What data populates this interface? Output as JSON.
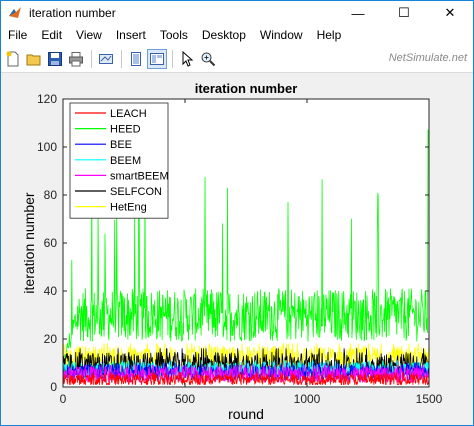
{
  "window": {
    "title": "iteration number",
    "minimize_glyph": "—",
    "maximize_glyph": "☐",
    "close_glyph": "✕"
  },
  "menu": [
    "File",
    "Edit",
    "View",
    "Insert",
    "Tools",
    "Desktop",
    "Window",
    "Help"
  ],
  "toolbar": {
    "icons": [
      "new-figure-icon",
      "open-icon",
      "save-icon",
      "print-icon",
      "link-plot-icon",
      "hide-plot-tools-icon",
      "show-plot-tools-icon",
      "edit-plot-icon",
      "zoom-in-icon"
    ],
    "watermark": "NetSimulate.net"
  },
  "colors": {
    "LEACH": "#ff0000",
    "HEED": "#00ff00",
    "BEE": "#0000ff",
    "BEEM": "#00ffff",
    "smartBEEM": "#ff00ff",
    "SELFCON": "#000000",
    "HetEng": "#ffff00"
  },
  "chart_data": {
    "type": "line",
    "title": "iteration number",
    "xlabel": "round",
    "ylabel": "iteration number",
    "xlim": [
      0,
      1500
    ],
    "ylim": [
      0,
      120
    ],
    "xticks": [
      0,
      500,
      1000,
      1500
    ],
    "yticks": [
      0,
      20,
      40,
      60,
      80,
      100,
      120
    ],
    "grid": false,
    "legend_position": "top-left",
    "series": [
      {
        "name": "LEACH",
        "color": "#ff0000",
        "approx_mean": 3,
        "approx_range": [
          1,
          6
        ]
      },
      {
        "name": "HEED",
        "color": "#00ff00",
        "approx_mean": 30,
        "approx_range": [
          10,
          107
        ]
      },
      {
        "name": "BEE",
        "color": "#0000ff",
        "approx_mean": 6,
        "approx_range": [
          3,
          10
        ]
      },
      {
        "name": "BEEM",
        "color": "#00ffff",
        "approx_mean": 7,
        "approx_range": [
          4,
          11
        ]
      },
      {
        "name": "smartBEEM",
        "color": "#ff00ff",
        "approx_mean": 5,
        "approx_range": [
          2,
          9
        ]
      },
      {
        "name": "SELFCON",
        "color": "#000000",
        "approx_mean": 9,
        "approx_range": [
          5,
          16
        ]
      },
      {
        "name": "HetEng",
        "color": "#ffff00",
        "approx_mean": 12,
        "approx_range": [
          8,
          18
        ]
      }
    ]
  }
}
